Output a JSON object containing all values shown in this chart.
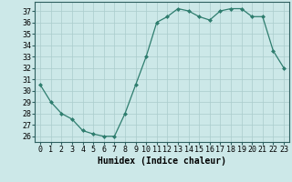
{
  "x": [
    0,
    1,
    2,
    3,
    4,
    5,
    6,
    7,
    8,
    9,
    10,
    11,
    12,
    13,
    14,
    15,
    16,
    17,
    18,
    19,
    20,
    21,
    22,
    23
  ],
  "y": [
    30.5,
    29.0,
    28.0,
    27.5,
    26.5,
    26.2,
    26.0,
    26.0,
    28.0,
    30.5,
    33.0,
    36.0,
    36.5,
    37.2,
    37.0,
    36.5,
    36.2,
    37.0,
    37.2,
    37.2,
    36.5,
    36.5,
    33.5,
    32.0
  ],
  "xlabel": "Humidex (Indice chaleur)",
  "xlim": [
    -0.5,
    23.5
  ],
  "ylim": [
    25.5,
    37.8
  ],
  "yticks": [
    26,
    27,
    28,
    29,
    30,
    31,
    32,
    33,
    34,
    35,
    36,
    37
  ],
  "xticks": [
    0,
    1,
    2,
    3,
    4,
    5,
    6,
    7,
    8,
    9,
    10,
    11,
    12,
    13,
    14,
    15,
    16,
    17,
    18,
    19,
    20,
    21,
    22,
    23
  ],
  "line_color": "#2e7d6e",
  "marker": "D",
  "marker_size": 2.0,
  "bg_color": "#cce8e8",
  "grid_color": "#aacccc",
  "xlabel_fontsize": 7,
  "tick_fontsize": 6
}
